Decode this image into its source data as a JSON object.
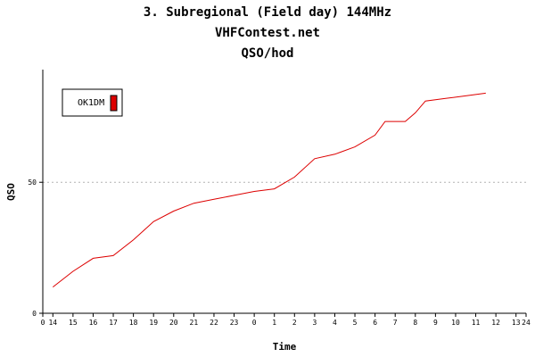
{
  "header": {
    "title": "3. Subregional (Field day) 144MHz",
    "site": "VHFContest.net",
    "subtitle": "QSO/hod"
  },
  "colors": {
    "series": "#dd0000",
    "grid": "#b4b4b4",
    "axis": "#000000"
  },
  "chart_data": {
    "type": "line",
    "title": "3. Subregional (Field day) 144MHz",
    "xlabel": "Time",
    "ylabel": "QSO",
    "x_tick_labels": [
      "0",
      "14",
      "15",
      "16",
      "17",
      "18",
      "19",
      "20",
      "21",
      "22",
      "23",
      "0",
      "1",
      "2",
      "3",
      "4",
      "5",
      "6",
      "7",
      "8",
      "9",
      "10",
      "11",
      "12",
      "13",
      "24"
    ],
    "y_ticks": [
      "0",
      "50"
    ],
    "xlim": [
      0,
      24
    ],
    "ylim": [
      0,
      93
    ],
    "grid": "horizontal dashed at 50",
    "legend_position": "top-left",
    "series": [
      {
        "name": "OK1DM",
        "color": "#dd0000",
        "x": [
          0.5,
          1.5,
          2.5,
          3.5,
          4.5,
          5.5,
          6.5,
          7.5,
          8.5,
          9.5,
          10.5,
          11.5,
          12.5,
          13.5,
          14.5,
          15.5,
          16.5,
          17.0,
          17.5,
          18.0,
          18.5,
          19.0,
          20.0,
          21.0,
          22.0
        ],
        "y": [
          10,
          16,
          21,
          22,
          28,
          35,
          39,
          42,
          43.5,
          45,
          46.5,
          47.5,
          52,
          59,
          60.7,
          63.5,
          68,
          73.2,
          73.2,
          73.2,
          76.5,
          81,
          82,
          83,
          84
        ]
      }
    ]
  }
}
